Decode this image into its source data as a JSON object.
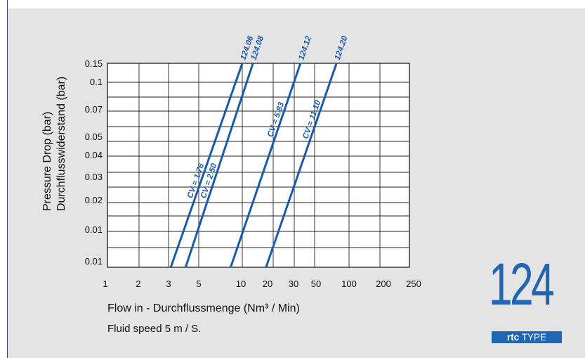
{
  "chart_data": {
    "type": "line",
    "title": "",
    "xlabel": "Flow in - Durchflussmenge (Nm³ / Min)",
    "ylabel_line1": "Pressure Drop (bar)",
    "ylabel_line2": "Durchflusswiderstand (bar)",
    "note": "Fluid speed 5 m / S.",
    "x_ticks": [
      "1",
      "2",
      "3",
      "5",
      "10",
      "20",
      "30",
      "50",
      "100",
      "200",
      "250"
    ],
    "y_ticks": [
      "0.15",
      "0.1",
      "0.07",
      "0.05",
      "0.04",
      "0.03",
      "0.02",
      "0.01",
      "0.01"
    ],
    "grid": true,
    "series": [
      {
        "name": "124.06",
        "cv": "CV = 1.76",
        "x": [
          2.95,
          10.0
        ],
        "y_level": [
          0.0,
          8.0
        ]
      },
      {
        "name": "124.08",
        "cv": "CV = 2.50",
        "x": [
          3.8,
          12.0
        ],
        "y_level": [
          0.0,
          8.0
        ]
      },
      {
        "name": "124.12",
        "cv": "CV = 5.83",
        "x": [
          8.2,
          27.0
        ],
        "y_level": [
          0.0,
          8.0
        ]
      },
      {
        "name": "124.20",
        "cv": "CV = 11.10",
        "x": [
          15.0,
          50.0
        ],
        "y_level": [
          0.0,
          8.0
        ]
      }
    ],
    "line_color": "#1a5aa8"
  },
  "badge": {
    "number": "124",
    "brand": "rtc",
    "type_label": "TYPE",
    "color": "#1f66b4"
  }
}
